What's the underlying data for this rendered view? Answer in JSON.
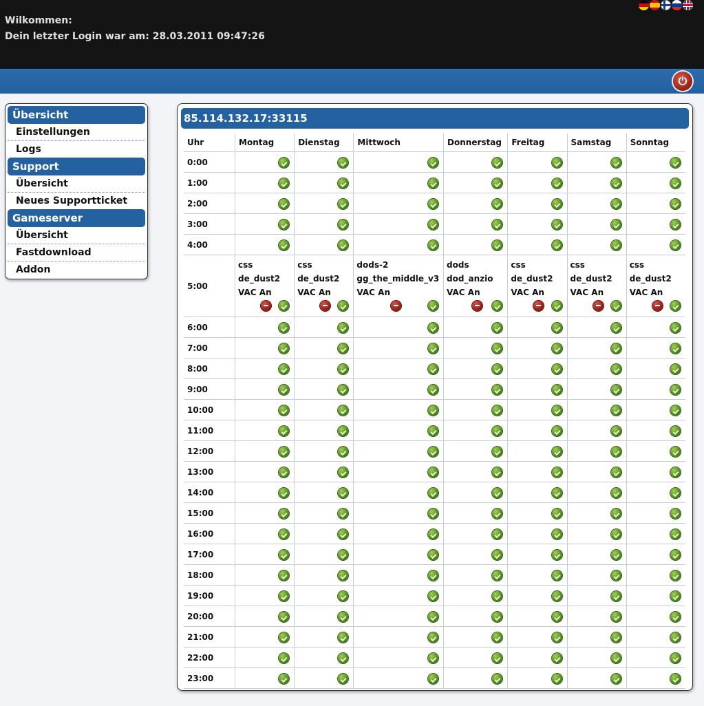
{
  "header": {
    "welcome": "Wilkommen:",
    "last_login": "Dein letzter Login war am: 28.03.2011 09:47:26",
    "languages": [
      "de",
      "es",
      "fi",
      "ru",
      "gb"
    ]
  },
  "colors": {
    "header_bg": "#141414",
    "accent_blue": "#2461a0",
    "ok_green": "#4d8a1e",
    "remove_red": "#981b14"
  },
  "sidebar": {
    "sections": [
      {
        "title": "Übersicht",
        "items": [
          "Einstellungen",
          "Logs"
        ]
      },
      {
        "title": "Support",
        "items": [
          "Übersicht",
          "Neues Supportticket"
        ]
      },
      {
        "title": "Gameserver",
        "items": [
          "Übersicht",
          "Fastdownload",
          "Addon"
        ]
      }
    ]
  },
  "panel": {
    "title": "85.114.132.17:33115"
  },
  "schedule": {
    "hour_header": "Uhr",
    "days": [
      "Montag",
      "Dienstag",
      "Mittwoch",
      "Donnerstag",
      "Freitag",
      "Samstag",
      "Sonntag"
    ],
    "hours": [
      "0:00",
      "1:00",
      "2:00",
      "3:00",
      "4:00",
      "5:00",
      "6:00",
      "7:00",
      "8:00",
      "9:00",
      "10:00",
      "11:00",
      "12:00",
      "13:00",
      "14:00",
      "15:00",
      "16:00",
      "17:00",
      "18:00",
      "19:00",
      "20:00",
      "21:00",
      "22:00",
      "23:00"
    ],
    "entries": {
      "5:00": [
        {
          "game": "css",
          "map": "de_dust2",
          "vac": "VAC An"
        },
        {
          "game": "css",
          "map": "de_dust2",
          "vac": "VAC An"
        },
        {
          "game": "dods-2",
          "map": "gg_the_middle_v3",
          "vac": "VAC An"
        },
        {
          "game": "dods",
          "map": "dod_anzio",
          "vac": "VAC An"
        },
        {
          "game": "css",
          "map": "de_dust2",
          "vac": "VAC An"
        },
        {
          "game": "css",
          "map": "de_dust2",
          "vac": "VAC An"
        },
        {
          "game": "css",
          "map": "de_dust2",
          "vac": "VAC An"
        }
      ]
    },
    "icons": {
      "add": "ok-check-icon",
      "remove": "remove-minus-icon"
    }
  }
}
